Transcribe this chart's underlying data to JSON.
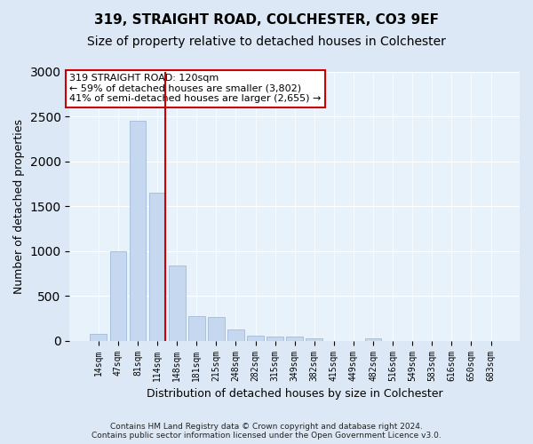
{
  "title1": "319, STRAIGHT ROAD, COLCHESTER, CO3 9EF",
  "title2": "Size of property relative to detached houses in Colchester",
  "xlabel": "Distribution of detached houses by size in Colchester",
  "ylabel": "Number of detached properties",
  "footnote1": "Contains HM Land Registry data © Crown copyright and database right 2024.",
  "footnote2": "Contains public sector information licensed under the Open Government Licence v3.0.",
  "annotation_line1": "319 STRAIGHT ROAD: 120sqm",
  "annotation_line2": "← 59% of detached houses are smaller (3,802)",
  "annotation_line3": "41% of semi-detached houses are larger (2,655) →",
  "bar_color": "#c5d8f0",
  "bar_edge_color": "#a8c0de",
  "vline_color": "#cc0000",
  "vline_bin": 3,
  "categories": [
    "14sqm",
    "47sqm",
    "81sqm",
    "114sqm",
    "148sqm",
    "181sqm",
    "215sqm",
    "248sqm",
    "282sqm",
    "315sqm",
    "349sqm",
    "382sqm",
    "415sqm",
    "449sqm",
    "482sqm",
    "516sqm",
    "549sqm",
    "583sqm",
    "616sqm",
    "650sqm",
    "683sqm"
  ],
  "values": [
    75,
    1000,
    2450,
    1650,
    840,
    275,
    265,
    130,
    58,
    50,
    50,
    28,
    0,
    0,
    28,
    0,
    0,
    0,
    0,
    0,
    0
  ],
  "ylim": [
    0,
    3000
  ],
  "bg_color": "#dce8f5",
  "plot_bg_color": "#e8f2fa",
  "title1_fontsize": 11,
  "title2_fontsize": 10,
  "ylabel_fontsize": 9,
  "xlabel_fontsize": 9,
  "tick_fontsize": 7,
  "annot_fontsize": 8,
  "footnote_fontsize": 6.5
}
